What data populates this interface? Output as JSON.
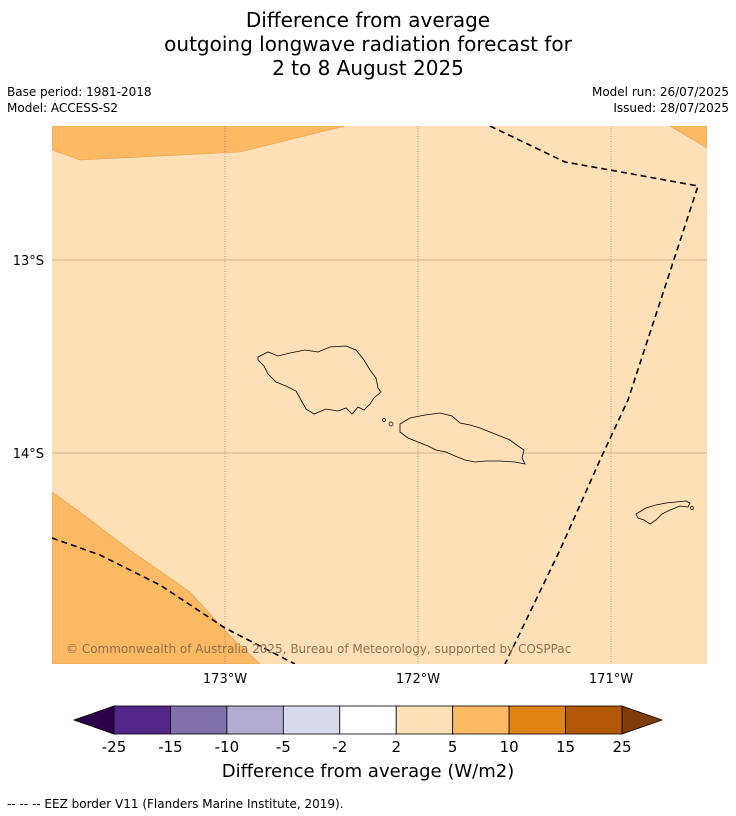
{
  "title": {
    "line1": "Difference from average",
    "line2": "outgoing longwave radiation forecast for",
    "line3": "2 to 8 August 2025"
  },
  "meta": {
    "base_period": "Base period: 1981-2018",
    "model": "Model: ACCESS-S2",
    "model_run": "Model run: 26/07/2025",
    "issued": "Issued: 28/07/2025"
  },
  "map": {
    "lat_labels": [
      "13°S",
      "14°S"
    ],
    "lon_labels": [
      "173°W",
      "172°W",
      "171°W"
    ],
    "copyright": "© Commonwealth of Australia 2025, Bureau of Meteorology, supported by COSPPac",
    "background_class_color": "#fde0b8",
    "anomaly_class_color": "#fbb964"
  },
  "colorbar": {
    "label": "Difference from average (W/m2)",
    "ticks": [
      "-25",
      "-15",
      "-10",
      "-5",
      "-2",
      "2",
      "5",
      "10",
      "15",
      "25"
    ],
    "colors": {
      "under": "#2d004b",
      "bins": [
        "#542788",
        "#8073ac",
        "#b2abd2",
        "#d8daeb",
        "#ffffff",
        "#fde0b8",
        "#fbb964",
        "#e08214",
        "#b35806"
      ],
      "over": "#7f3b08"
    }
  },
  "footer": {
    "eez_note": "--  --  -- EEZ border V11 (Flanders Marine Institute, 2019)."
  }
}
